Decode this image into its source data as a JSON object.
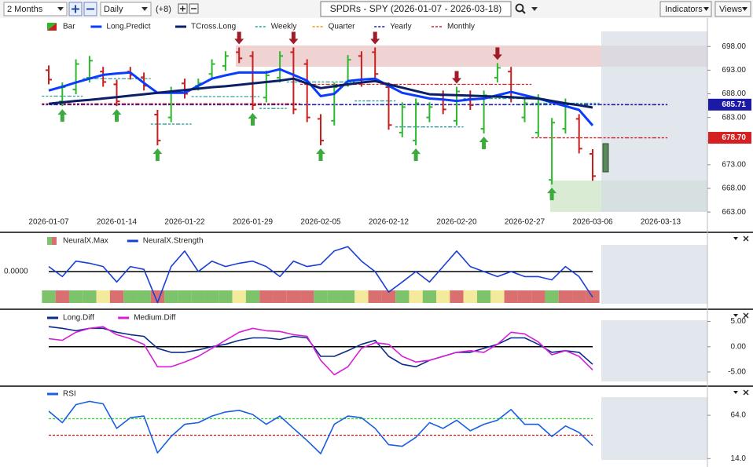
{
  "toolbar": {
    "period": "2 Months",
    "interval": "Daily",
    "offset": "(+8)",
    "title": "SPDRs - SPY (2026-01-07 - 2026-03-18)",
    "indicators": "Indicators",
    "views": "Views"
  },
  "chart_data": [
    {
      "type": "ohlc",
      "categories": [
        "2026-01-07",
        null,
        null,
        null,
        null,
        "2026-01-14",
        null,
        null,
        null,
        null,
        "2026-01-22",
        null,
        null,
        null,
        null,
        "2026-01-29",
        null,
        null,
        null,
        null,
        "2026-02-05",
        null,
        null,
        null,
        null,
        "2026-02-12",
        null,
        null,
        null,
        null,
        "2026-02-20",
        null,
        null,
        null,
        null,
        "2026-02-27",
        null,
        null,
        null,
        null,
        "2026-03-06",
        null,
        null,
        null,
        null,
        "2026-03-13"
      ],
      "bars": {
        "name": "Bar",
        "up_color": "#2db82d",
        "down_color": "#c81e1e",
        "high": [
          694,
          690.4,
          695.3,
          696,
          693.7,
          691,
          693.7,
          692.5,
          684.6,
          689.5,
          691.2,
          691.2,
          695.3,
          697,
          697.8,
          697,
          692.9,
          697,
          697.8,
          695.3,
          683.7,
          690.4,
          696.2,
          697,
          697.8,
          690.4,
          686.2,
          687,
          686.2,
          688.7,
          689.5,
          688.7,
          688.7,
          694.5,
          693.7,
          687,
          687.9,
          682.9,
          687,
          683.7,
          676.3,
          null,
          null,
          null,
          null,
          null
        ],
        "low": [
          690,
          685.4,
          687.9,
          690.4,
          689.5,
          685.4,
          691,
          688.7,
          677.1,
          682,
          687,
          688.7,
          691.2,
          692.9,
          694.5,
          684.6,
          686.2,
          690.4,
          683.7,
          682,
          677.1,
          681.3,
          689.5,
          689.5,
          691.2,
          680.4,
          678.8,
          677.1,
          682,
          683.7,
          681.3,
          684.6,
          679.6,
          690.4,
          686.2,
          682,
          678.8,
          668.8,
          679.6,
          675.4,
          669.6,
          null,
          null,
          null,
          null,
          null
        ],
        "open": [
          693,
          686.4,
          688.9,
          691.4,
          692.7,
          690,
          692.7,
          691.5,
          683.6,
          683,
          690.2,
          689.7,
          692.2,
          693.9,
          696.8,
          696,
          687.2,
          691.4,
          696.8,
          694.3,
          682.7,
          682.3,
          690.5,
          696,
          696.8,
          689.4,
          679.8,
          678.1,
          683,
          687.7,
          682.3,
          687.7,
          680.6,
          691.4,
          692.7,
          683,
          679.8,
          669.8,
          680.6,
          682.7,
          675.3,
          null,
          null,
          null,
          null,
          null
        ],
        "close": [
          691,
          689.4,
          694.3,
          695,
          690.5,
          686.4,
          692,
          689.7,
          678.1,
          688.5,
          688,
          690.2,
          694.3,
          696,
          695.5,
          685.6,
          691.9,
          696,
          684.7,
          683,
          678.1,
          689.4,
          695.2,
          690.5,
          692.2,
          681.4,
          685.2,
          686,
          685.2,
          684.7,
          688.5,
          685.6,
          687.7,
          693.5,
          687.2,
          686,
          686.9,
          681.9,
          686,
          676.4,
          670.6,
          null,
          null,
          null,
          null,
          null
        ]
      },
      "series": [
        {
          "name": "Long.Predict",
          "color": "#0a3cff",
          "style": "line",
          "width": 3,
          "values": [
            688.7,
            689.5,
            690.4,
            691.2,
            692,
            692.3,
            692.5,
            690.3,
            688.2,
            688.2,
            688.2,
            689.7,
            691.2,
            691.9,
            692.5,
            692.5,
            692.5,
            693.2,
            692,
            690.8,
            687.5,
            688,
            690.7,
            691,
            691.2,
            689.7,
            688.2,
            687.6,
            687,
            686.8,
            686.5,
            686.8,
            687,
            687.7,
            688.4,
            687.7,
            687,
            686.2,
            685.4,
            684.6,
            681.3,
            null,
            null,
            null,
            null,
            null
          ]
        },
        {
          "name": "TCross.Long",
          "color": "#0b1f66",
          "style": "line",
          "width": 3,
          "values": [
            685.9,
            686.2,
            686.5,
            686.7,
            687,
            687.3,
            687.6,
            687.9,
            688.2,
            688.5,
            688.8,
            689.1,
            689.4,
            689.6,
            689.9,
            690.2,
            690.5,
            690.8,
            691.2,
            690.2,
            689.2,
            689.6,
            690,
            690.4,
            690.7,
            690,
            689.3,
            688.6,
            687.9,
            687.8,
            687.7,
            687.6,
            687.5,
            687.4,
            687.3,
            687.1,
            687,
            686.5,
            686,
            685.6,
            685.1,
            null,
            null,
            null,
            null,
            null
          ]
        },
        {
          "name": "Weekly",
          "color": "#2aa198",
          "style": "step",
          "width": 1.3,
          "values": [
            687.5,
            687.5,
            687.5,
            691.2,
            691.2,
            691.2,
            691.2,
            691.2,
            681.6,
            681.6,
            681.6,
            687.4,
            687.4,
            687.4,
            687.4,
            687.4,
            684.9,
            684.9,
            690.5,
            690.5,
            690.5,
            690.5,
            690.5,
            686.5,
            686.5,
            686.5,
            681,
            681,
            681,
            681,
            681,
            687,
            687,
            687,
            687,
            687,
            686,
            686,
            686,
            686,
            686,
            null,
            null,
            null,
            null,
            null
          ]
        },
        {
          "name": "Quarter",
          "color": "#e0a000",
          "style": "step",
          "width": 1.3,
          "values": [
            null,
            null,
            null,
            null,
            null,
            null,
            null,
            null,
            null,
            null,
            null,
            null,
            null,
            null,
            null,
            null,
            null,
            null,
            null,
            null,
            null,
            null,
            null,
            null,
            null,
            null,
            null,
            null,
            null,
            null,
            null,
            null,
            null,
            null,
            null,
            null,
            null,
            null,
            null,
            null,
            null,
            null,
            null,
            null,
            null,
            null
          ]
        },
        {
          "name": "Yearly",
          "color": "#1a1aa6",
          "style": "step",
          "width": 1.6,
          "values": [
            685.71,
            685.71,
            685.71,
            685.71,
            685.71,
            685.71,
            685.71,
            685.71,
            685.71,
            685.71,
            685.71,
            685.71,
            685.71,
            685.71,
            685.71,
            685.71,
            685.71,
            685.71,
            685.71,
            685.71,
            685.71,
            685.71,
            685.71,
            685.71,
            685.71,
            685.71,
            685.71,
            685.71,
            685.71,
            685.71,
            685.71,
            685.71,
            685.71,
            685.71,
            685.71,
            685.71,
            685.71,
            685.71,
            685.71,
            685.71,
            685.71,
            685.71,
            685.71,
            685.71,
            685.71,
            685.71
          ]
        },
        {
          "name": "Monthly",
          "color": "#d42020",
          "style": "step",
          "width": 1.3,
          "values": [
            685.9,
            685.9,
            685.9,
            685.9,
            685.9,
            685.9,
            685.9,
            685.9,
            685.9,
            685.9,
            685.9,
            685.9,
            685.9,
            685.9,
            685.9,
            685.9,
            685.9,
            685.9,
            685.9,
            690,
            690,
            690,
            690,
            690,
            690,
            690,
            690,
            690,
            690,
            690,
            690,
            690,
            690,
            690,
            690,
            690,
            678.7,
            678.7,
            678.7,
            678.7,
            678.7,
            678.7,
            678.7,
            678.7,
            678.7,
            678.7
          ]
        }
      ],
      "signals": {
        "up": [
          1,
          5,
          8,
          15,
          20,
          27,
          32,
          37
        ],
        "down": [
          14,
          18,
          24,
          30,
          33
        ],
        "up_color": "#3caa3c",
        "down_color": "#a01c28"
      },
      "tags": [
        {
          "value": 685.71,
          "label": "685.71",
          "color": "#1a1aa6"
        },
        {
          "value": 678.7,
          "label": "678.70",
          "color": "#d42020"
        }
      ],
      "ylim": [
        659.7,
        701.2
      ],
      "tick_side": "right",
      "yticks": [
        {
          "value": 698,
          "label": "698.00"
        },
        {
          "value": 693,
          "label": "693.00"
        },
        {
          "value": 688,
          "label": "688.00"
        },
        {
          "value": 683,
          "label": "683.00"
        },
        {
          "value": 678,
          "label": "678.00"
        },
        {
          "value": 673,
          "label": "673.00"
        },
        {
          "value": 668,
          "label": "668.00"
        },
        {
          "value": 663,
          "label": "663.00"
        }
      ]
    },
    {
      "type": "line",
      "ylim": [
        -1,
        1
      ],
      "tick_side": "left",
      "zero_line": true,
      "yticks": [
        {
          "value": 0,
          "label": "0.0000"
        }
      ],
      "series": [
        {
          "name": "NeuralX.Max",
          "style": "cells",
          "up_color": "#7dc36b",
          "down_color": "#d9706f",
          "flat_color": "#f3eb9b",
          "values": [
            1,
            -1,
            1,
            1,
            0,
            -1,
            1,
            1,
            -1,
            1,
            1,
            1,
            1,
            1,
            0,
            1,
            -1,
            -1,
            -1,
            -1,
            1,
            1,
            1,
            0,
            -1,
            -1,
            1,
            0,
            1,
            0,
            -1,
            0,
            1,
            0,
            -1,
            -1,
            -1,
            1,
            -1,
            -1,
            -1
          ]
        },
        {
          "name": "NeuralX.Strength",
          "color": "#1a3fd6",
          "style": "line",
          "width": 1.6,
          "values": [
            0.14,
            -0.14,
            0.29,
            0.23,
            0.14,
            -0.29,
            0.14,
            0.06,
            -0.86,
            0.14,
            0.57,
            0,
            0.29,
            0.14,
            0.23,
            0.29,
            0.14,
            -0.14,
            0.29,
            0.14,
            0.2,
            0.57,
            0.69,
            0.29,
            0,
            -0.57,
            -0.29,
            0,
            -0.29,
            0.14,
            0.57,
            0.14,
            0,
            -0.14,
            0,
            -0.14,
            -0.14,
            -0.23,
            0.14,
            -0.14,
            -0.71
          ]
        }
      ]
    },
    {
      "type": "line",
      "ylim": [
        -7.5,
        6.8
      ],
      "tick_side": "right",
      "zero_line": true,
      "yticks": [
        {
          "value": 5,
          "label": "5.00"
        },
        {
          "value": 0,
          "label": "0.00"
        },
        {
          "value": -5,
          "label": "-5.00"
        }
      ],
      "series": [
        {
          "name": "Long.Diff",
          "color": "#0b2c8c",
          "style": "line",
          "width": 1.6,
          "values": [
            3.97,
            3.65,
            3.17,
            3.65,
            3.65,
            2.86,
            2.38,
            2.06,
            -0.32,
            -1.11,
            -1.11,
            -0.63,
            0,
            0.48,
            1.27,
            1.75,
            1.75,
            1.43,
            2.06,
            1.75,
            -1.9,
            -1.9,
            -0.79,
            0.48,
            1.27,
            -1.9,
            -3.49,
            -3.97,
            -2.7,
            -1.9,
            -1.11,
            -1.11,
            -0.32,
            0.48,
            1.75,
            1.75,
            0.48,
            -1.11,
            -0.79,
            -1.11,
            -3.49
          ]
        },
        {
          "name": "Medium.Diff",
          "color": "#d61fd6",
          "style": "line",
          "width": 1.6,
          "values": [
            1.59,
            1.27,
            2.86,
            3.65,
            3.97,
            2.38,
            1.59,
            0.48,
            -3.97,
            -3.97,
            -3.02,
            -1.9,
            -0.32,
            1.27,
            2.86,
            3.65,
            3.17,
            3.02,
            2.38,
            2.06,
            -2.7,
            -5.56,
            -3.97,
            -0.32,
            0.79,
            0.48,
            -1.9,
            -3.02,
            -2.7,
            -1.9,
            -1.11,
            -0.79,
            -1.11,
            0.48,
            2.86,
            2.54,
            0.95,
            -1.59,
            -0.79,
            -1.9,
            -4.6
          ]
        }
      ]
    },
    {
      "type": "line",
      "ylim": [
        7,
        94
      ],
      "tick_side": "right",
      "yticks": [
        {
          "value": 64,
          "label": "64.0"
        },
        {
          "value": 14,
          "label": "14.0"
        }
      ],
      "levels": [
        {
          "value": 60,
          "color": "#22dd22"
        },
        {
          "value": 41,
          "color": "#dd1111"
        }
      ],
      "series": [
        {
          "name": "RSI",
          "color": "#1a5fe0",
          "style": "line",
          "width": 1.6,
          "values": [
            68.7,
            55.5,
            76.3,
            80,
            77.2,
            48.9,
            61.2,
            63.1,
            20.6,
            39.5,
            53.6,
            55.5,
            63.1,
            67.8,
            69.7,
            64.9,
            53.6,
            63.1,
            48.9,
            34.8,
            19.7,
            53.6,
            63.1,
            61.2,
            48.9,
            30,
            28.2,
            38.5,
            55.5,
            48.9,
            58.3,
            46.1,
            53.6,
            58.3,
            70.6,
            53.6,
            53.6,
            39.5,
            51.7,
            44.2,
            29.1
          ]
        }
      ]
    }
  ]
}
